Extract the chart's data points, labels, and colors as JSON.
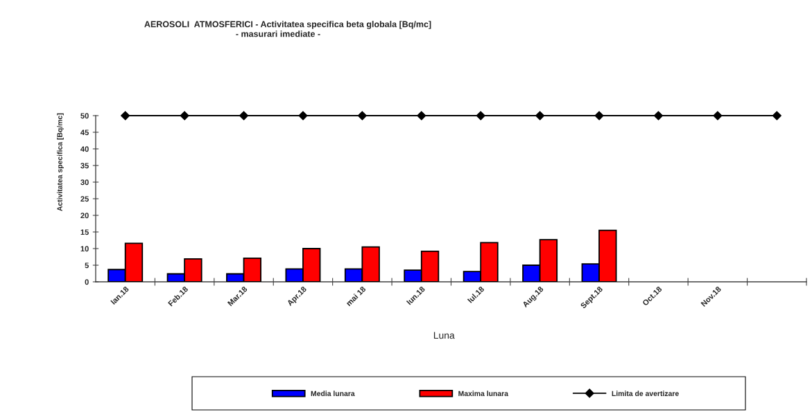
{
  "chart_data": {
    "type": "bar",
    "title": "AEROSOLI  ATMOSFERICI - Activitatea specifica beta globala [Bq/mc]",
    "subtitle": "- masurari imediate -",
    "xlabel": "Luna",
    "ylabel": "Activitatea specifica [Bq/mc]",
    "categories": [
      "Ian.18",
      "Feb.18",
      "Mar.18",
      "Apr.18",
      "mai 18",
      "Iun.18",
      "Iul.18",
      "Aug.18",
      "Sept.18",
      "Oct.18",
      "Nov.18",
      null
    ],
    "series": [
      {
        "name": "Media lunara",
        "color": "#0000ff",
        "values": [
          3.7,
          2.4,
          2.4,
          3.9,
          3.9,
          3.5,
          3.1,
          5.0,
          5.4,
          null,
          null,
          null
        ]
      },
      {
        "name": "Maxima lunara",
        "color": "#ff0000",
        "values": [
          11.6,
          6.9,
          7.1,
          10.0,
          10.5,
          9.2,
          11.8,
          12.7,
          15.5,
          null,
          null,
          null
        ]
      },
      {
        "name": "Limita de avertizare",
        "type": "line",
        "color": "#000000",
        "marker": "diamond",
        "line_style": "solid",
        "values": [
          50,
          50,
          50,
          50,
          50,
          50,
          50,
          50,
          50,
          50,
          50,
          50
        ]
      }
    ],
    "ylim": [
      0,
      50
    ],
    "yticks": [
      0,
      5,
      10,
      15,
      20,
      25,
      30,
      35,
      40,
      45,
      50
    ],
    "legend": "bottom"
  }
}
